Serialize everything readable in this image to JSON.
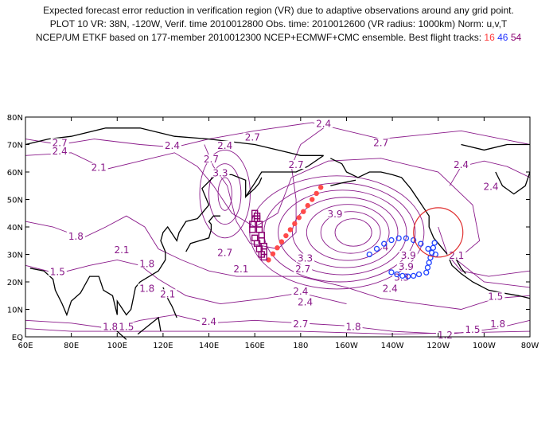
{
  "title": {
    "line1": "Expected forecast error reduction in verification region (VR) due to adaptive observations around any grid point.",
    "line2": "PLOT 10 VR: 38N, -120W, Verif. time 2010012800 Obs. time: 2010012600 (VR radius: 1000km) Norm: u,v,T",
    "line3_prefix": "NCEP/UM ETKF based on 177-member 2010012300 NCEP+ECMWF+CMC ensemble. Best flight tracks:",
    "track_red_label": "16",
    "track_blue_label": "46",
    "track_purple_label": "54"
  },
  "axes": {
    "lon_ticks": [
      "60E",
      "80E",
      "100E",
      "120E",
      "140E",
      "160E",
      "180",
      "160W",
      "140W",
      "120W",
      "100W",
      "80W"
    ],
    "lat_ticks": [
      "EQ",
      "10N",
      "20N",
      "30N",
      "40N",
      "50N",
      "60N",
      "70N",
      "80N"
    ]
  },
  "colors": {
    "contour": "#8a1a8a",
    "coast": "#000000",
    "track_red": "#ff4a4a",
    "track_blue": "#2244ff",
    "track_purple": "#8a0070",
    "vr_circle": "#e03030"
  },
  "contour_labels": [
    {
      "text": "2.7",
      "lon": 75,
      "lat": 70
    },
    {
      "text": "2.4",
      "lon": 75,
      "lat": 67
    },
    {
      "text": "2.1",
      "lon": 92,
      "lat": 61
    },
    {
      "text": "1.8",
      "lon": 82,
      "lat": 36
    },
    {
      "text": "1.5",
      "lon": 74,
      "lat": 23
    },
    {
      "text": "2.1",
      "lon": 102,
      "lat": 31
    },
    {
      "text": "1.8",
      "lon": 113,
      "lat": 26
    },
    {
      "text": "1.8",
      "lon": 113,
      "lat": 17
    },
    {
      "text": "1.8",
      "lon": 97,
      "lat": 3
    },
    {
      "text": "1.5",
      "lon": 104,
      "lat": 3
    },
    {
      "text": "2.4",
      "lon": 124,
      "lat": 69
    },
    {
      "text": "2.7",
      "lon": 141,
      "lat": 64
    },
    {
      "text": "3.3",
      "lon": 145,
      "lat": 59
    },
    {
      "text": "2.7",
      "lon": 147,
      "lat": 30
    },
    {
      "text": "2.1",
      "lon": 122,
      "lat": 15
    },
    {
      "text": "2.1",
      "lon": 154,
      "lat": 24
    },
    {
      "text": "2.4",
      "lon": 140,
      "lat": 5
    },
    {
      "text": "2.4",
      "lon": 147,
      "lat": 69
    },
    {
      "text": "2.7",
      "lon": 159,
      "lat": 72
    },
    {
      "text": "2.4",
      "lon": 190,
      "lat": 77
    },
    {
      "text": "2.7",
      "lon": 215,
      "lat": 70
    },
    {
      "text": "2.7",
      "lon": 178,
      "lat": 62
    },
    {
      "text": "3.9",
      "lon": 195,
      "lat": 44
    },
    {
      "text": "3.3",
      "lon": 182,
      "lat": 28
    },
    {
      "text": "2.7",
      "lon": 181,
      "lat": 24
    },
    {
      "text": "2.4",
      "lon": 180,
      "lat": 16
    },
    {
      "text": "2.4",
      "lon": 182,
      "lat": 12
    },
    {
      "text": "2.7",
      "lon": 180,
      "lat": 4
    },
    {
      "text": "4",
      "lon": 217,
      "lat": 32
    },
    {
      "text": "3.9",
      "lon": 227,
      "lat": 29
    },
    {
      "text": "3.9",
      "lon": 226,
      "lat": 25
    },
    {
      "text": "3.3",
      "lon": 224,
      "lat": 21
    },
    {
      "text": "2.4",
      "lon": 219,
      "lat": 17
    },
    {
      "text": "1.8",
      "lon": 203,
      "lat": 3
    },
    {
      "text": "2.4",
      "lon": 250,
      "lat": 62
    },
    {
      "text": "2.4",
      "lon": 263,
      "lat": 54
    },
    {
      "text": "2.1",
      "lon": 248,
      "lat": 29
    },
    {
      "text": "1.5",
      "lon": 265,
      "lat": 14
    },
    {
      "text": "1.5",
      "lon": 255,
      "lat": 2
    },
    {
      "text": "1.8",
      "lon": 266,
      "lat": 4
    },
    {
      "text": "1.2",
      "lon": 243,
      "lat": 0
    }
  ],
  "vr_circle": {
    "lat": 38,
    "lon": -120,
    "radius_label": "1000km"
  }
}
